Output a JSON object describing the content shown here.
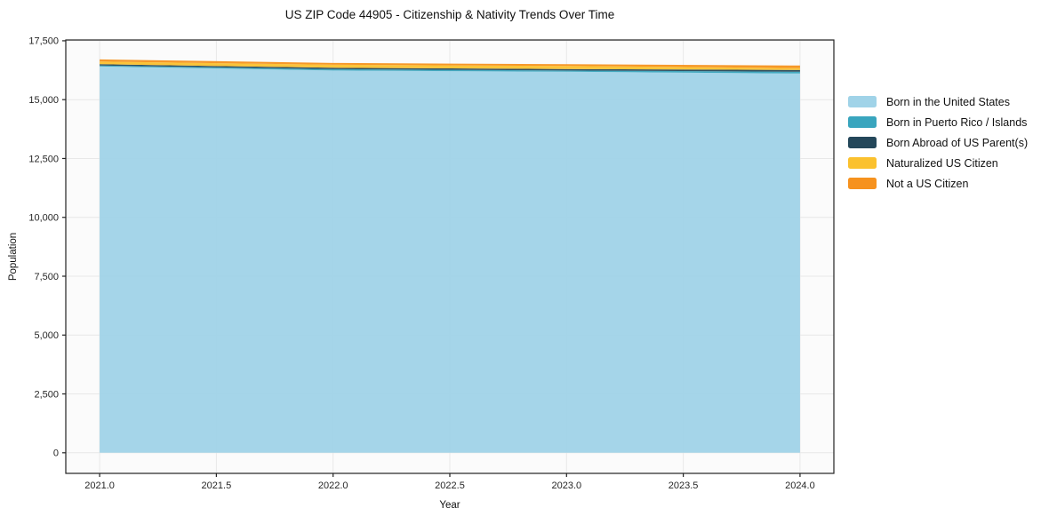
{
  "chart_data": {
    "type": "area",
    "stacked": true,
    "title": "US ZIP Code 44905 - Citizenship & Nativity Trends Over Time",
    "xlabel": "Year",
    "ylabel": "Population",
    "x": [
      2021,
      2022,
      2023,
      2024
    ],
    "series": [
      {
        "name": "Born in the United States",
        "color": "#A0D3E8",
        "values": [
          16410,
          16240,
          16185,
          16110
        ]
      },
      {
        "name": "Born in Puerto Rico / Islands",
        "color": "#39A5BE",
        "values": [
          40,
          55,
          55,
          75
        ]
      },
      {
        "name": "Born Abroad of US Parent(s)",
        "color": "#24475A",
        "values": [
          55,
          60,
          60,
          75
        ]
      },
      {
        "name": "Naturalized US Citizen",
        "color": "#FBC12E",
        "values": [
          115,
          130,
          130,
          80
        ]
      },
      {
        "name": "Not a US Citizen",
        "color": "#F6921E",
        "values": [
          90,
          75,
          75,
          110
        ]
      }
    ],
    "xticks": [
      {
        "v": 2021.0,
        "label": "2021.0"
      },
      {
        "v": 2021.5,
        "label": "2021.5"
      },
      {
        "v": 2022.0,
        "label": "2022.0"
      },
      {
        "v": 2022.5,
        "label": "2022.5"
      },
      {
        "v": 2023.0,
        "label": "2023.0"
      },
      {
        "v": 2023.5,
        "label": "2023.5"
      },
      {
        "v": 2024.0,
        "label": "2024.0"
      }
    ],
    "yticks": [
      {
        "v": 0,
        "label": "0"
      },
      {
        "v": 2500,
        "label": "2,500"
      },
      {
        "v": 5000,
        "label": "5,000"
      },
      {
        "v": 7500,
        "label": "7,500"
      },
      {
        "v": 10000,
        "label": "10,000"
      },
      {
        "v": 12500,
        "label": "12,500"
      },
      {
        "v": 15000,
        "label": "15,000"
      },
      {
        "v": 17500,
        "label": "17,500"
      }
    ],
    "xlim": [
      2020.855,
      2024.145
    ],
    "ylim": [
      -875,
      17535
    ],
    "grid": true,
    "legend_position": "right-outside",
    "plot_bg": "#FBFBFB",
    "grid_color": "#E8E8E8",
    "spine_color": "#222222",
    "tick_text_color": "#262626"
  }
}
